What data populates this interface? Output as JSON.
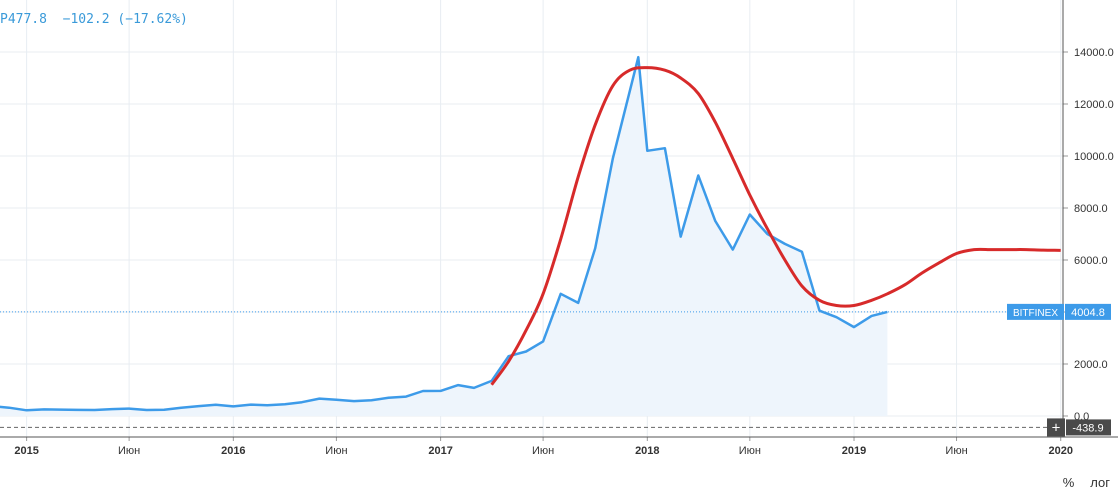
{
  "legend": {
    "value": "P477.8",
    "change": "−102.2",
    "change_pct": "(−17.62%)"
  },
  "controls": {
    "percent": "%",
    "log": "лог"
  },
  "price_label": {
    "exchange": "BITFINEX",
    "value": "4004.8",
    "value_num": 4004.8
  },
  "crosshair_label": {
    "value": "-438.9",
    "value_num": -438.9,
    "plus": "+"
  },
  "colors": {
    "price_line": "#3d9be9",
    "price_fill": "#eef5fc",
    "ma_line": "#d72a2a",
    "grid": "#e8edf2",
    "axis_text": "#333333",
    "price_label_bg": "#3d9be9",
    "crosshair_label_bg": "#4a4a4a"
  },
  "chart_data": {
    "type": "line",
    "y_ticks": [
      0,
      2000,
      4000,
      6000,
      8000,
      10000,
      12000,
      14000
    ],
    "y_tick_labels": [
      "0.0",
      "2000.0",
      "4000.0",
      "6000.0",
      "8000.0",
      "10000.0",
      "12000.0",
      "14000.0"
    ],
    "ylim": [
      -600,
      15700
    ],
    "xlim": [
      "2014-11-15",
      "2020-01-05"
    ],
    "x_ticks": [
      {
        "date": "2015-01-01",
        "label": "2015",
        "bold": true
      },
      {
        "date": "2015-07-01",
        "label": "Июн",
        "bold": false
      },
      {
        "date": "2016-01-01",
        "label": "2016",
        "bold": true
      },
      {
        "date": "2016-07-01",
        "label": "Июн",
        "bold": false
      },
      {
        "date": "2017-01-01",
        "label": "2017",
        "bold": true
      },
      {
        "date": "2017-07-01",
        "label": "Июн",
        "bold": false
      },
      {
        "date": "2018-01-01",
        "label": "2018",
        "bold": true
      },
      {
        "date": "2018-07-01",
        "label": "Июн",
        "bold": false
      },
      {
        "date": "2019-01-01",
        "label": "2019",
        "bold": true
      },
      {
        "date": "2019-07-01",
        "label": "Июн",
        "bold": false
      },
      {
        "date": "2020-01-01",
        "label": "2020",
        "bold": true
      }
    ],
    "series": [
      {
        "values": [
          [
            "2014-11-01",
            380
          ],
          [
            "2014-12-01",
            320
          ],
          [
            "2015-01-01",
            220
          ],
          [
            "2015-02-01",
            255
          ],
          [
            "2015-03-01",
            245
          ],
          [
            "2015-04-01",
            235
          ],
          [
            "2015-05-01",
            230
          ],
          [
            "2015-06-01",
            265
          ],
          [
            "2015-07-01",
            285
          ],
          [
            "2015-08-01",
            230
          ],
          [
            "2015-09-01",
            237
          ],
          [
            "2015-10-01",
            315
          ],
          [
            "2015-11-01",
            380
          ],
          [
            "2015-12-01",
            430
          ],
          [
            "2016-01-01",
            370
          ],
          [
            "2016-02-01",
            437
          ],
          [
            "2016-03-01",
            416
          ],
          [
            "2016-04-01",
            450
          ],
          [
            "2016-05-01",
            530
          ],
          [
            "2016-06-01",
            670
          ],
          [
            "2016-07-01",
            625
          ],
          [
            "2016-08-01",
            575
          ],
          [
            "2016-09-01",
            608
          ],
          [
            "2016-10-01",
            700
          ],
          [
            "2016-11-01",
            745
          ],
          [
            "2016-12-01",
            960
          ],
          [
            "2017-01-01",
            965
          ],
          [
            "2017-02-01",
            1190
          ],
          [
            "2017-03-01",
            1080
          ],
          [
            "2017-04-01",
            1350
          ],
          [
            "2017-05-01",
            2300
          ],
          [
            "2017-06-01",
            2480
          ],
          [
            "2017-07-01",
            2870
          ],
          [
            "2017-08-01",
            4700
          ],
          [
            "2017-09-01",
            4350
          ],
          [
            "2017-10-01",
            6450
          ],
          [
            "2017-11-01",
            9900
          ],
          [
            "2017-12-16",
            13800
          ],
          [
            "2018-01-01",
            10200
          ],
          [
            "2018-02-01",
            10300
          ],
          [
            "2018-03-01",
            6900
          ],
          [
            "2018-04-01",
            9250
          ],
          [
            "2018-05-01",
            7500
          ],
          [
            "2018-06-01",
            6400
          ],
          [
            "2018-07-01",
            7750
          ],
          [
            "2018-08-01",
            7000
          ],
          [
            "2018-09-01",
            6620
          ],
          [
            "2018-10-01",
            6320
          ],
          [
            "2018-11-01",
            4050
          ],
          [
            "2018-12-01",
            3800
          ],
          [
            "2019-01-01",
            3420
          ],
          [
            "2019-02-01",
            3850
          ],
          [
            "2019-03-01",
            4005
          ]
        ],
        "style": "area"
      },
      {
        "values": [
          [
            "2017-04-01",
            1200
          ],
          [
            "2017-05-01",
            2100
          ],
          [
            "2017-06-01",
            3300
          ],
          [
            "2017-07-01",
            4700
          ],
          [
            "2017-08-01",
            6800
          ],
          [
            "2017-09-01",
            9200
          ],
          [
            "2017-10-01",
            11200
          ],
          [
            "2017-11-01",
            12700
          ],
          [
            "2017-12-01",
            13300
          ],
          [
            "2018-01-01",
            13400
          ],
          [
            "2018-02-01",
            13300
          ],
          [
            "2018-03-01",
            13000
          ],
          [
            "2018-04-01",
            12400
          ],
          [
            "2018-05-01",
            11300
          ],
          [
            "2018-06-01",
            9900
          ],
          [
            "2018-07-01",
            8500
          ],
          [
            "2018-08-01",
            7200
          ],
          [
            "2018-09-01",
            6000
          ],
          [
            "2018-10-01",
            5000
          ],
          [
            "2018-11-01",
            4450
          ],
          [
            "2018-12-01",
            4250
          ],
          [
            "2019-01-01",
            4250
          ],
          [
            "2019-02-01",
            4450
          ],
          [
            "2019-03-01",
            4700
          ],
          [
            "2019-04-01",
            5050
          ],
          [
            "2019-05-01",
            5500
          ],
          [
            "2019-06-01",
            5900
          ],
          [
            "2019-07-01",
            6250
          ],
          [
            "2019-08-01",
            6400
          ],
          [
            "2019-09-01",
            6400
          ],
          [
            "2019-10-01",
            6400
          ],
          [
            "2019-11-01",
            6400
          ],
          [
            "2019-12-01",
            6380
          ],
          [
            "2020-01-01",
            6370
          ]
        ],
        "style": "line"
      }
    ],
    "grid": true,
    "legend_position": "top-left"
  }
}
